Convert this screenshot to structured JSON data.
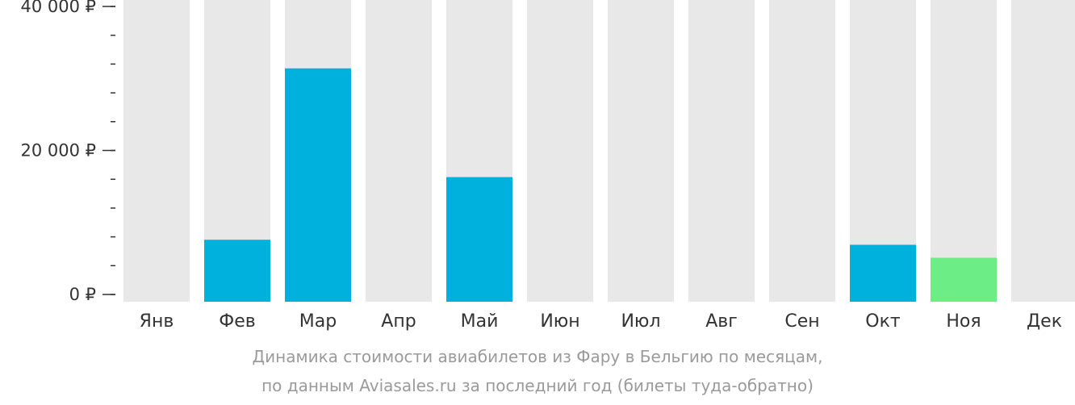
{
  "chart_data": {
    "type": "bar",
    "categories": [
      "Янв",
      "Фев",
      "Мар",
      "Апр",
      "Май",
      "Июн",
      "Июл",
      "Авг",
      "Сен",
      "Окт",
      "Ноя",
      "Дек"
    ],
    "values": [
      null,
      7600,
      31400,
      null,
      16300,
      null,
      null,
      null,
      null,
      6900,
      5100,
      null
    ],
    "highlight_index": 10,
    "ylim": [
      0,
      40000
    ],
    "yticks": [
      {
        "value": 0,
        "label": "0 ₽"
      },
      {
        "value": 20000,
        "label": "20 000 ₽"
      },
      {
        "value": 40000,
        "label": "40 000 ₽"
      }
    ],
    "minor_tick_step": 4000,
    "title": "",
    "xlabel": "",
    "ylabel": "",
    "grid": false,
    "legend": "none",
    "colors": {
      "bar": "#00b1dd",
      "highlight": "#6ced85",
      "background_column": "#e8e8e8",
      "axis": "#333333"
    }
  },
  "caption": {
    "line1": "Динамика стоимости авиабилетов из Фару в Бельгию по месяцам,",
    "line2": "по данным Aviasales.ru за последний год (билеты туда-обратно)"
  }
}
